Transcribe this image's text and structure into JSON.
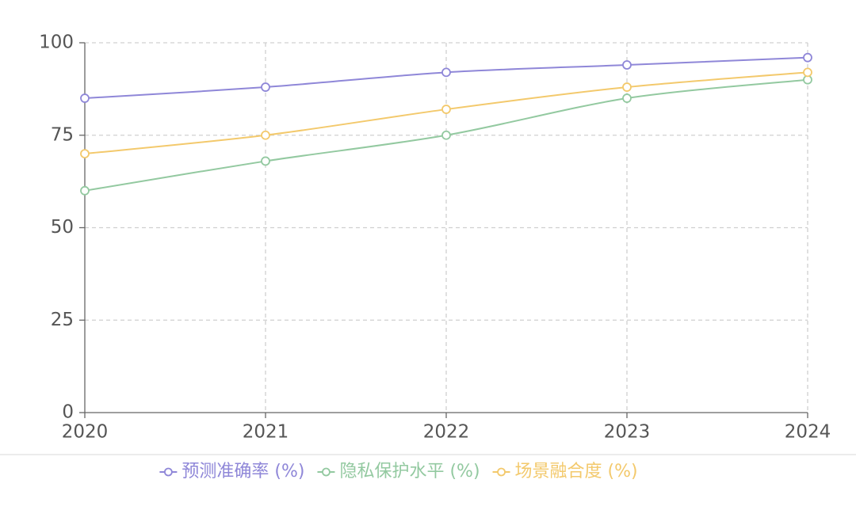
{
  "chart_data": {
    "type": "line",
    "categories": [
      "2020",
      "2021",
      "2022",
      "2023",
      "2024"
    ],
    "series": [
      {
        "name": "预测准确率 (%)",
        "color": "#8f87d8",
        "values": [
          85,
          88,
          92,
          94,
          96
        ]
      },
      {
        "name": "隐私保护水平 (%)",
        "color": "#93c9a0",
        "values": [
          60,
          68,
          75,
          85,
          90
        ]
      },
      {
        "name": "场景融合度 (%)",
        "color": "#f3c96c",
        "values": [
          70,
          75,
          82,
          88,
          92
        ]
      }
    ],
    "ylim": [
      0,
      100
    ],
    "yticks": [
      0,
      25,
      50,
      75,
      100
    ],
    "grid": true,
    "legend": "bottom"
  }
}
